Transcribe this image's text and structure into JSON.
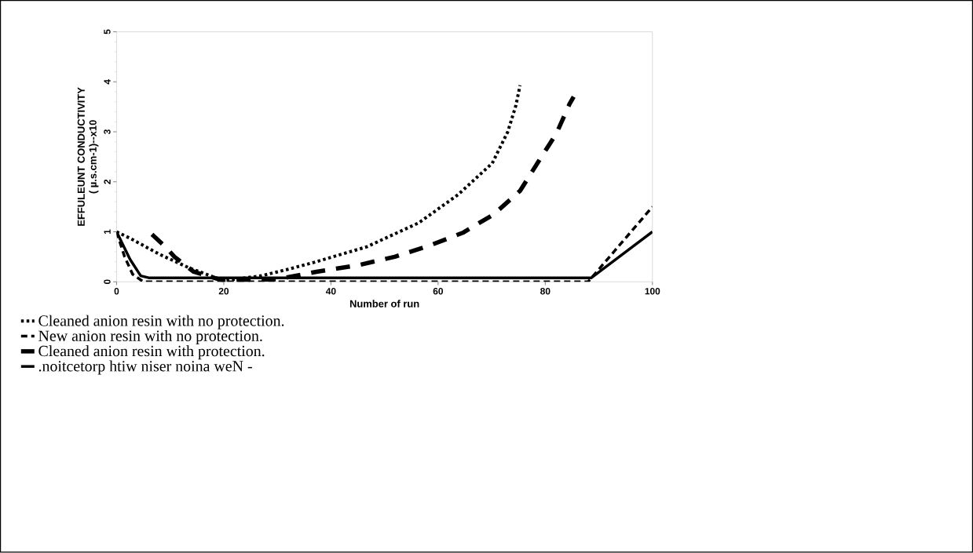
{
  "chart_data": {
    "type": "line",
    "xlabel": "Number of run",
    "ylabel": "EFFULEUNT CONDUCTIVITY\n( µ.s.cm-1)--x10",
    "xlim": [
      0,
      100
    ],
    "ylim": [
      0,
      5
    ],
    "xticks": [
      0,
      20,
      40,
      60,
      80,
      100
    ],
    "yticks": [
      0,
      1,
      2,
      3,
      4,
      5
    ],
    "legend": "bottom left",
    "series": [
      {
        "name": "Cleaned anion resin with no protection.",
        "color": "#000000",
        "line_style": "dotted",
        "x": [
          0,
          2.7,
          8,
          13.5,
          20,
          27,
          32,
          36.9,
          46.7,
          56.4,
          63.7,
          70.1,
          73,
          74.5,
          75.3
        ],
        "values": [
          1,
          0.86,
          0.55,
          0.28,
          0.02,
          0.12,
          0.25,
          0.39,
          0.7,
          1.18,
          1.74,
          2.37,
          3.0,
          3.52,
          3.93
        ]
      },
      {
        "name": "New anion resin with no protection.",
        "color": "#000000",
        "line_style": "dashed",
        "x": [
          0,
          1.5,
          3,
          5,
          88,
          94,
          100
        ],
        "values": [
          1,
          0.5,
          0.15,
          0,
          0,
          0.75,
          1.5
        ]
      },
      {
        "name": "Cleaned anion resin with protection.",
        "color": "#000000",
        "line_style": "dashed",
        "x": [
          6.6,
          9.1,
          10.8,
          14.4,
          20,
          30,
          37.3,
          45,
          51.9,
          58.3,
          64.6,
          70.4,
          75.3,
          78.7,
          82.1,
          84.5,
          85.3
        ],
        "values": [
          0.95,
          0.7,
          0.5,
          0.2,
          0.02,
          0.05,
          0.2,
          0.33,
          0.5,
          0.72,
          0.98,
          1.35,
          1.82,
          2.4,
          2.97,
          3.55,
          3.7
        ]
      },
      {
        "name": ".noitcetorp htiw niser noina weN -",
        "color": "#000000",
        "line_style": "solid",
        "x": [
          0,
          2.5,
          4.5,
          6,
          88.6,
          100
        ],
        "values": [
          1,
          0.45,
          0.12,
          0.08,
          0.08,
          1
        ]
      }
    ]
  }
}
